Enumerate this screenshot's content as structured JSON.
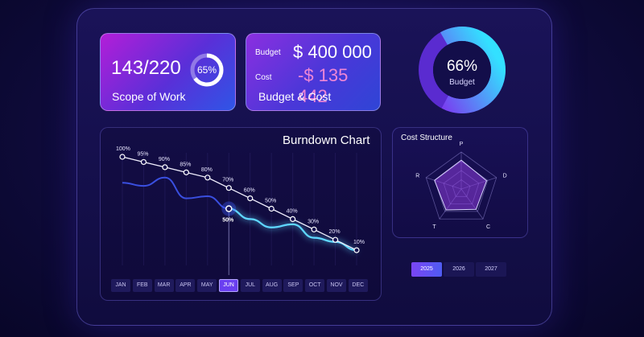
{
  "scope": {
    "value": "143/220",
    "label": "Scope of Work",
    "percent_text": "65%",
    "percent": 65
  },
  "budget": {
    "budget_label": "Budget",
    "budget_value": "$ 400 000",
    "cost_label": "Cost",
    "cost_value": "-$ 135 442",
    "caption": "Budget & Cost"
  },
  "donut": {
    "percent_text": "66%",
    "label": "Budget",
    "percent": 66
  },
  "burndown": {
    "title": "Burndown Chart",
    "months": [
      "JAN",
      "FEB",
      "MAR",
      "APR",
      "MAY",
      "JUN",
      "JUL",
      "AUG",
      "SEP",
      "OCT",
      "NOV",
      "DEC"
    ],
    "active_month": "JUN",
    "marker_label": "50%"
  },
  "chart_data": {
    "type": "line",
    "title": "Burndown Chart",
    "categories": [
      "JAN",
      "FEB",
      "MAR",
      "APR",
      "MAY",
      "JUN",
      "JUL",
      "AUG",
      "SEP",
      "OCT",
      "NOV",
      "DEC"
    ],
    "series": [
      {
        "values": [
          100,
          95,
          90,
          85,
          80,
          70,
          60,
          50,
          40,
          30,
          20,
          10
        ]
      },
      {
        "values": [
          75,
          72,
          80,
          60,
          62,
          50,
          40,
          32,
          35,
          22,
          18,
          10
        ]
      }
    ],
    "ylim": [
      0,
      100
    ],
    "highlight": {
      "category": "JUN",
      "value": 50
    }
  },
  "cost_structure": {
    "title": "Cost Structure",
    "axes": [
      "P",
      "D",
      "C",
      "T",
      "R"
    ],
    "values": [
      0.78,
      0.72,
      0.68,
      0.7,
      0.76
    ]
  },
  "years": {
    "items": [
      "2025",
      "2026",
      "2027"
    ],
    "active": "2025"
  },
  "colors": {
    "accent": "#6a3ff0",
    "cyan": "#35d8ff",
    "pink": "#e07ad0"
  }
}
